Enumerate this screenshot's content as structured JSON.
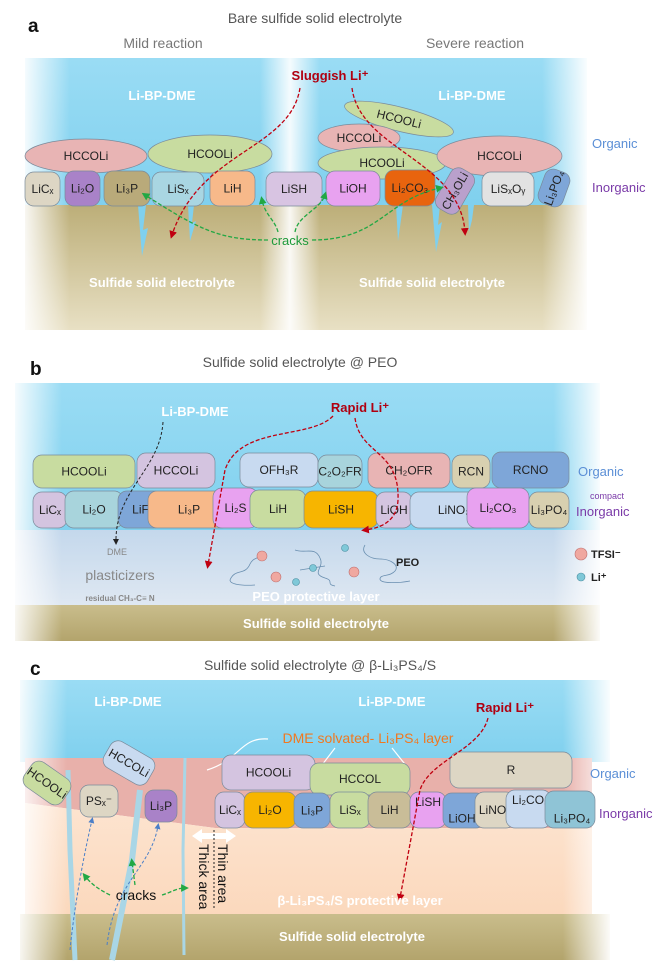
{
  "panel_a": {
    "letter": "a",
    "title": "Bare sulfide solid electrolyte",
    "left_subtitle": "Mild reaction",
    "right_subtitle": "Severe reaction",
    "electrolyte_left": "Li-BP-DME",
    "electrolyte_right": "Li-BP-DME",
    "li_transport": "Sluggish Li⁺",
    "cracks": "cracks",
    "substrate_left": "Sulfide solid electrolyte",
    "substrate_right": "Sulfide solid electrolyte",
    "organic_label": "Organic",
    "inorganic_label": "Inorganic",
    "organic": [
      {
        "label": "HCCOLi",
        "color": "#e8b4b4"
      },
      {
        "label": "HCOOLi",
        "color": "#c8dca0"
      },
      {
        "label": "HCOOLi",
        "color": "#c8dca0"
      },
      {
        "label": "HCCOLi",
        "color": "#e8b4b4"
      },
      {
        "label": "HCOOLi",
        "color": "#c8dca0"
      },
      {
        "label": "HCCOLi",
        "color": "#e8b4b4"
      }
    ],
    "inorganic": [
      {
        "label": "LiCₓ",
        "color": "#ddd6c4"
      },
      {
        "label": "Li₂O",
        "color": "#a982c8"
      },
      {
        "label": "Li₃P",
        "color": "#b9aa7a"
      },
      {
        "label": "LiSₓ",
        "color": "#a9d6e2"
      },
      {
        "label": "LiH",
        "color": "#f7b98a"
      },
      {
        "label": "LiSH",
        "color": "#d8c4e2"
      },
      {
        "label": "LiOH",
        "color": "#e8a2f0"
      },
      {
        "label": "Li₂CO₃",
        "color": "#e8640e"
      },
      {
        "label": "CH₃OLi",
        "color": "#b9a0cc"
      },
      {
        "label": "LiSₓOᵧ",
        "color": "#e2e2e2"
      },
      {
        "label": "Li₃PO₄",
        "color": "#7ea6d8"
      }
    ]
  },
  "panel_b": {
    "letter": "b",
    "title": "Sulfide solid electrolyte @ PEO",
    "electrolyte": "Li-BP-DME",
    "li_transport": "Rapid Li⁺",
    "organic_label": "Organic",
    "compact_label": "compact",
    "inorganic_label": "Inorganic",
    "dme": "DME",
    "plasticizers": "plasticizers",
    "residual": "residual CH₃-C≡ N",
    "peo": "PEO",
    "legend_tfsi": "TFSI⁻",
    "legend_li": "Li⁺",
    "protective_layer": "PEO protective layer",
    "substrate": "Sulfide solid electrolyte",
    "organic": [
      {
        "label": "HCOOLi",
        "color": "#c8dca0"
      },
      {
        "label": "HCCOLi",
        "color": "#d4c4e0"
      },
      {
        "label": "OFH₃R",
        "color": "#c8daf0"
      },
      {
        "label": "C₂O₂FR",
        "color": "#a8d4dc"
      },
      {
        "label": "CH₂OFR",
        "color": "#e8b4b4"
      },
      {
        "label": "RCN",
        "color": "#d8d0b0"
      },
      {
        "label": "RCNO",
        "color": "#7ea6d8"
      }
    ],
    "inorganic": [
      {
        "label": "LiCₓ",
        "color": "#d4c4e0"
      },
      {
        "label": "Li₂O",
        "color": "#a8d4dc"
      },
      {
        "label": "LiF",
        "color": "#7ea6d8"
      },
      {
        "label": "Li₃P",
        "color": "#f7b98a"
      },
      {
        "label": "Li₂S",
        "color": "#e8a2f0"
      },
      {
        "label": "LiH",
        "color": "#c8dca0"
      },
      {
        "label": "LiSH",
        "color": "#f7b500"
      },
      {
        "label": "LiOH",
        "color": "#d4c4e0"
      },
      {
        "label": "LiNO₃",
        "color": "#c8daf0"
      },
      {
        "label": "Li₂CO₃",
        "color": "#e8a2f0"
      },
      {
        "label": "Li₃PO₄",
        "color": "#d8d0b0"
      }
    ]
  },
  "panel_c": {
    "letter": "c",
    "title": "Sulfide solid electrolyte @ β-Li₃PS₄/S",
    "electrolyte_left": "Li-BP-DME",
    "electrolyte_right": "Li-BP-DME",
    "li_transport": "Rapid Li⁺",
    "solvated_layer": "DME solvated- Li₃PS₄ layer",
    "organic_label": "Organic",
    "inorganic_label": "Inorganic",
    "thin_area": "Thin area",
    "thick_area": "Thick area",
    "cracks": "cracks",
    "protective_layer": "β-Li₃PS₄/S protective layer",
    "substrate": "Sulfide solid electrolyte",
    "left_particles": [
      {
        "label": "HCOOLi",
        "color": "#c8dca0"
      },
      {
        "label": "PSₓ⁻",
        "color": "#ddd6c4"
      },
      {
        "label": "HCCOLi",
        "color": "#c8daf0"
      },
      {
        "label": "Li₃P",
        "color": "#a982c8"
      }
    ],
    "organic": [
      {
        "label": "HCOOLi",
        "color": "#d4c4e0"
      },
      {
        "label": "HCCOL",
        "color": "#c8dca0"
      },
      {
        "label": "R",
        "color": "#ddd6c4"
      }
    ],
    "inorganic": [
      {
        "label": "LiCₓ",
        "color": "#d4c4e0"
      },
      {
        "label": "Li₂O",
        "color": "#f7b500"
      },
      {
        "label": "Li₃P",
        "color": "#7ea6d8"
      },
      {
        "label": "LiSₓ",
        "color": "#c8dca0"
      },
      {
        "label": "LiH",
        "color": "#c9bd98"
      },
      {
        "label": "LiSH",
        "color": "#e8a2f0"
      },
      {
        "label": "LiOH",
        "color": "#7ea6d8"
      },
      {
        "label": "LiNO₃",
        "color": "#ddd6c4"
      },
      {
        "label": "Li₂CO₃",
        "color": "#c8daf0"
      },
      {
        "label": "Li₃PO₄",
        "color": "#8fc4d6"
      }
    ]
  },
  "colors": {
    "electrolyte_blue": "#8fd8f2",
    "sulfide_tan": "#c2b684",
    "li_arrow_red": "#c00010",
    "crack_arrow_green": "#22a844",
    "c_organic_band": "#e8b0aa",
    "c_protective_peach": "#fde2cc"
  }
}
